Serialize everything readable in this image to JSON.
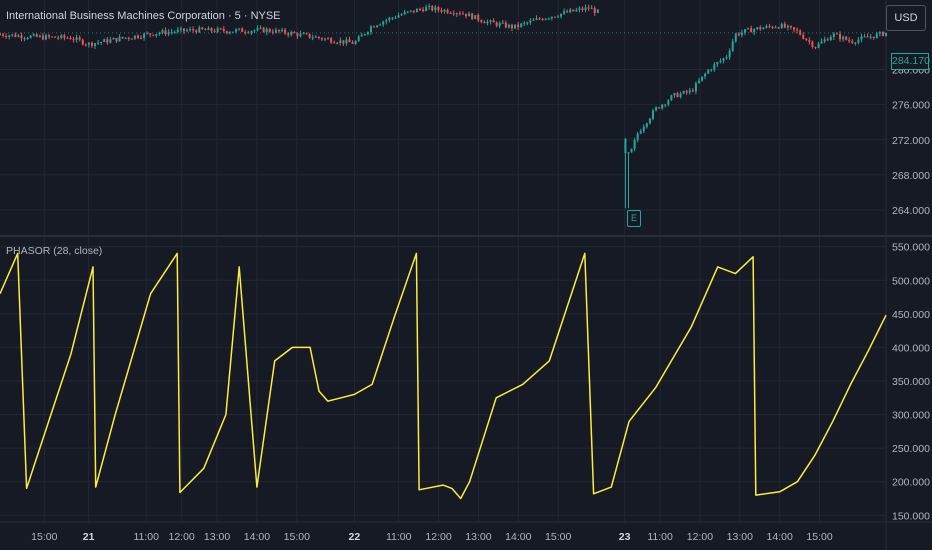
{
  "header": {
    "title": "International Business Machines Corporation · 5 · NYSE",
    "currency": "USD"
  },
  "price_panel": {
    "last_price_label": "284.170",
    "event_marker": "E",
    "colors": {
      "up": "#26a69a",
      "down": "#ef5350",
      "background": "#161a25",
      "grid": "#232734"
    }
  },
  "indicator_panel": {
    "label": "PHASOR (28, close)",
    "line_color": "#ffeb3b"
  },
  "chart_data": [
    {
      "type": "candlestick",
      "title": "International Business Machines Corporation · 5 · NYSE",
      "y_ticks": [
        "280.000",
        "276.000",
        "272.000",
        "268.000",
        "264.000"
      ],
      "ylim": [
        261.5,
        287
      ],
      "x_ticks": [
        "15:00",
        "21",
        "11:00",
        "12:00",
        "13:00",
        "14:00",
        "15:00",
        "22",
        "11:00",
        "12:00",
        "13:00",
        "14:00",
        "15:00",
        "23",
        "11:00",
        "12:00",
        "13:00",
        "14:00",
        "15:00"
      ],
      "close_path": [
        [
          0,
          284.0
        ],
        [
          0.04,
          283.7
        ],
        [
          0.08,
          283.6
        ],
        [
          0.1,
          282.9
        ],
        [
          0.14,
          283.6
        ],
        [
          0.18,
          284.2
        ],
        [
          0.22,
          284.5
        ],
        [
          0.26,
          284.4
        ],
        [
          0.3,
          284.5
        ],
        [
          0.33,
          284.1
        ],
        [
          0.36,
          283.6
        ],
        [
          0.385,
          283.2
        ],
        [
          0.4,
          283.0
        ],
        [
          0.42,
          285.0
        ],
        [
          0.45,
          286.2
        ],
        [
          0.48,
          287.0
        ],
        [
          0.52,
          286.5
        ],
        [
          0.55,
          285.4
        ],
        [
          0.58,
          284.8
        ],
        [
          0.61,
          285.8
        ],
        [
          0.64,
          286.5
        ],
        [
          0.665,
          287.0
        ],
        [
          0.675,
          286.5
        ],
        [
          0.71,
          270.0
        ],
        [
          0.72,
          272.8
        ],
        [
          0.74,
          275.5
        ],
        [
          0.76,
          277.0
        ],
        [
          0.78,
          277.5
        ],
        [
          0.8,
          280.0
        ],
        [
          0.82,
          281.5
        ],
        [
          0.83,
          284.0
        ],
        [
          0.85,
          284.6
        ],
        [
          0.88,
          285.0
        ],
        [
          0.9,
          284.3
        ],
        [
          0.92,
          282.6
        ],
        [
          0.94,
          284.0
        ],
        [
          0.96,
          283.2
        ],
        [
          1.0,
          284.17
        ]
      ],
      "last_price": 284.17,
      "earnings_low": 264.2
    },
    {
      "type": "line",
      "series": [
        {
          "name": "PHASOR (28, close)",
          "path": [
            [
              0,
              480
            ],
            [
              0.02,
              540
            ],
            [
              0.03,
              190
            ],
            [
              0.04,
              230
            ],
            [
              0.08,
              390
            ],
            [
              0.105,
              520
            ],
            [
              0.108,
              192
            ],
            [
              0.13,
              300
            ],
            [
              0.17,
              480
            ],
            [
              0.2,
              540
            ],
            [
              0.203,
              184
            ],
            [
              0.23,
              220
            ],
            [
              0.255,
              300
            ],
            [
              0.27,
              520
            ],
            [
              0.29,
              192
            ],
            [
              0.31,
              380
            ],
            [
              0.33,
              400
            ],
            [
              0.35,
              400
            ],
            [
              0.36,
              335
            ],
            [
              0.37,
              320
            ],
            [
              0.385,
              325
            ],
            [
              0.4,
              330
            ],
            [
              0.42,
              345
            ],
            [
              0.445,
              445
            ],
            [
              0.47,
              540
            ],
            [
              0.473,
              188
            ],
            [
              0.5,
              195
            ],
            [
              0.51,
              190
            ],
            [
              0.52,
              175
            ],
            [
              0.53,
              200
            ],
            [
              0.56,
              325
            ],
            [
              0.59,
              345
            ],
            [
              0.62,
              380
            ],
            [
              0.66,
              540
            ],
            [
              0.67,
              182
            ],
            [
              0.69,
              192
            ],
            [
              0.71,
              290
            ],
            [
              0.74,
              340
            ],
            [
              0.78,
              430
            ],
            [
              0.81,
              520
            ],
            [
              0.83,
              510
            ],
            [
              0.85,
              535
            ],
            [
              0.853,
              180
            ],
            [
              0.88,
              185
            ],
            [
              0.9,
              200
            ],
            [
              0.92,
              240
            ],
            [
              0.94,
              290
            ],
            [
              0.96,
              345
            ],
            [
              0.98,
              395
            ],
            [
              1.0,
              448
            ]
          ]
        }
      ],
      "y_ticks": [
        "550.000",
        "500.000",
        "450.000",
        "400.000",
        "350.000",
        "300.000",
        "250.000",
        "200.000",
        "150.000"
      ],
      "ylim": [
        140,
        560
      ]
    }
  ]
}
